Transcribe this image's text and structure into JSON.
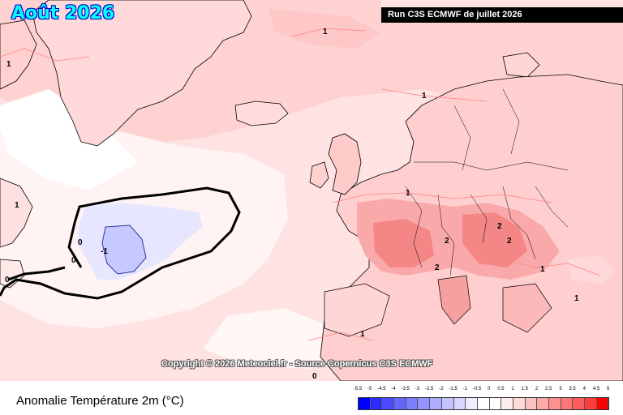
{
  "map": {
    "title": "Août 2026",
    "run_label": "Run C3S ECMWF de juillet 2026",
    "copyright": "Copyright © 2026 Meteociel.fr - Source Copernicus C3S ECMWF",
    "contour_labels": {
      "greenland_north": "1",
      "greenland_west": "1",
      "canada_a": "1",
      "canada_b": "1",
      "canada_c": "0",
      "canada_d": "0",
      "canada_e": "0",
      "cold_core": "-1",
      "norway": "1",
      "cz_a": "2",
      "cz_b": "2",
      "germany": "2",
      "alps": "2",
      "balkan": "1",
      "black_sea": "1",
      "iberia": "1",
      "bottom": "0"
    }
  },
  "legend": {
    "title": "Anomalie Température 2m (°C)",
    "unit": "°C",
    "ticks": [
      "-5.5",
      "-5",
      "-4.5",
      "-4",
      "-3.5",
      "-3",
      "-2.5",
      "-2",
      "-1.5",
      "-1",
      "-0.5",
      "0",
      "0.5",
      "1",
      "1.5",
      "2",
      "2.5",
      "3",
      "3.5",
      "4",
      "4.5",
      "5"
    ],
    "colors": [
      "#0000ff",
      "#2b2bff",
      "#4a4aff",
      "#6464ff",
      "#7d7dff",
      "#9595ff",
      "#adadff",
      "#c3c3ff",
      "#d9d9ff",
      "#ededff",
      "#ffffff",
      "#ffffff",
      "#ffecec",
      "#ffd8d8",
      "#ffc2c2",
      "#ffaaaa",
      "#ff9090",
      "#ff7676",
      "#ff5a5a",
      "#ff3c3c",
      "#ff0000"
    ]
  },
  "colors": {
    "map_background": "#ffe4e4",
    "warm_strong": "#f77b7b",
    "cold": "#c4c8ff",
    "title_text": "#00ffff",
    "title_outline": "#0000cc"
  }
}
